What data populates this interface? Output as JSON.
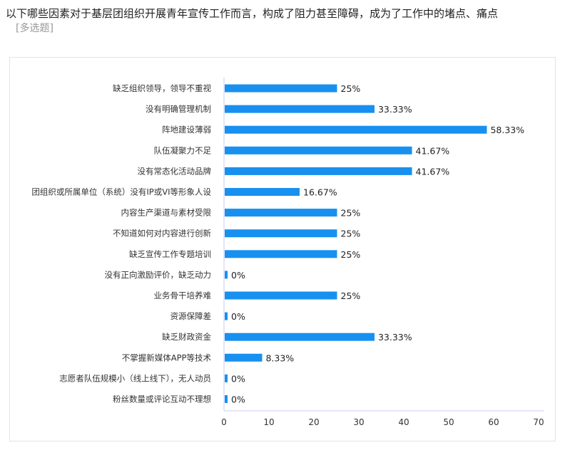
{
  "question": {
    "title": "以下哪些因素对于基层团组织开展青年宣传工作而言，构成了阻力甚至障碍，成为了工作中的堵点、痛点",
    "tag": "[多选题]"
  },
  "colors": {
    "bar": "#1890ef",
    "axis": "#c9cdf0",
    "text": "#333333"
  },
  "chart_data": {
    "type": "bar",
    "orientation": "horizontal",
    "categories": [
      "缺乏组织领导，领导不重视",
      "没有明确管理机制",
      "阵地建设薄弱",
      "队伍凝聚力不足",
      "没有常态化活动品牌",
      "团组织或所属单位（系统）没有IP或VI等形象人设",
      "内容生产渠道与素材受限",
      "不知道如何对内容进行创新",
      "缺乏宣传工作专题培训",
      "没有正向激励评价，缺乏动力",
      "业务骨干培养难",
      "资源保障差",
      "缺乏财政资金",
      "不掌握新媒体APP等技术",
      "志愿者队伍规模小（线上线下），无人动员",
      "粉丝数量或评论互动不理想"
    ],
    "values": [
      25,
      33.33,
      58.33,
      41.67,
      41.67,
      16.67,
      25,
      25,
      25,
      0,
      25,
      0,
      33.33,
      8.33,
      0,
      0
    ],
    "value_labels": [
      "25%",
      "33.33%",
      "58.33%",
      "41.67%",
      "41.67%",
      "16.67%",
      "25%",
      "25%",
      "25%",
      "0%",
      "25%",
      "0%",
      "33.33%",
      "8.33%",
      "0%",
      "0%"
    ],
    "xticks": [
      "0",
      "10",
      "20",
      "30",
      "40",
      "50",
      "60",
      "70"
    ],
    "xlim": [
      0,
      70
    ],
    "grid": false
  }
}
